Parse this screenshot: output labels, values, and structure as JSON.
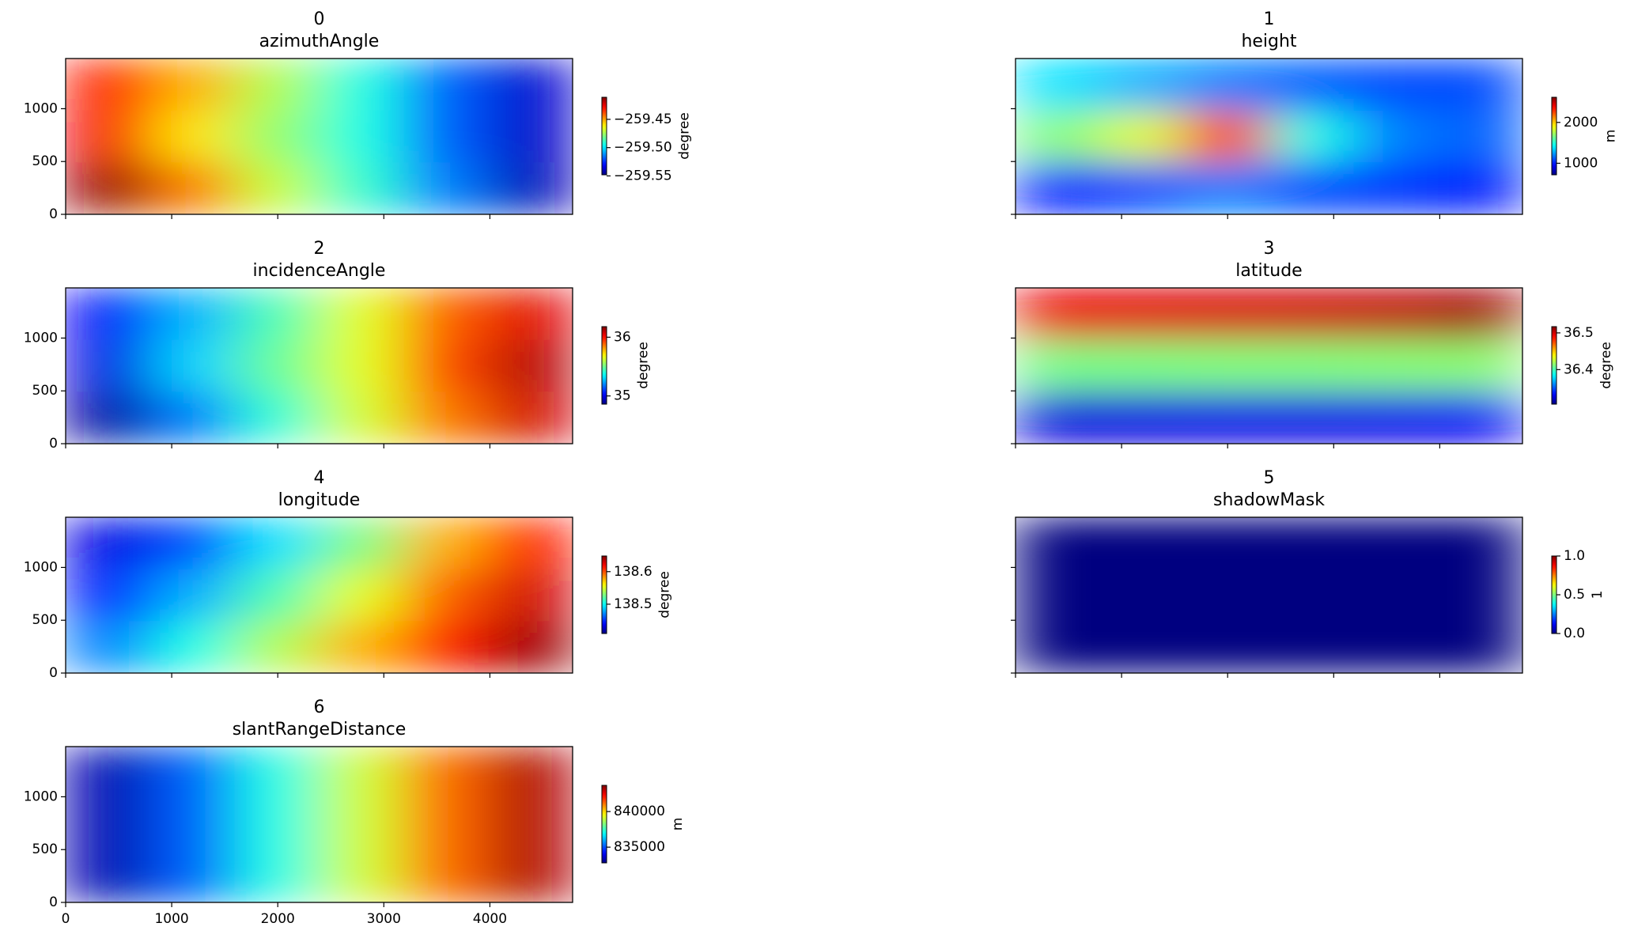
{
  "chart_data": [
    {
      "type": "heatmap",
      "title": "0",
      "subtitle": "azimuthAngle",
      "colormap": "jet",
      "colorbar_label": "degree",
      "clim": [
        -259.548,
        -259.411
      ],
      "cticks": [
        {
          "value": -259.55,
          "label": "−259.55"
        },
        {
          "value": -259.5,
          "label": "−259.50"
        },
        {
          "value": -259.45,
          "label": "−259.45"
        }
      ],
      "xlim": [
        0,
        4780
      ],
      "ylim": [
        0,
        1475
      ],
      "xticks": [
        0,
        1000,
        2000,
        3000,
        4000
      ],
      "yticks": [
        0,
        500,
        1000
      ],
      "xtick_labels": false,
      "ytick_labels": true,
      "values": [
        [
          -259.432,
          -259.452,
          -259.473,
          -259.493,
          -259.518,
          -259.537
        ],
        [
          -259.427,
          -259.459,
          -259.477,
          -259.493,
          -259.518,
          -259.538
        ],
        [
          -259.415,
          -259.445,
          -259.47,
          -259.49,
          -259.514,
          -259.54
        ]
      ]
    },
    {
      "type": "heatmap",
      "title": "1",
      "subtitle": "height",
      "colormap": "jet",
      "colorbar_label": "m",
      "clim": [
        718,
        2615
      ],
      "cticks": [
        1000,
        2000
      ],
      "xlim": [
        0,
        4780
      ],
      "ylim": [
        0,
        1475
      ],
      "xticks": [
        0,
        1000,
        2000,
        3000,
        4000
      ],
      "yticks": [
        0,
        500,
        1000
      ],
      "xtick_labels": false,
      "ytick_labels": false,
      "values": [
        [
          1382,
          1287,
          1192,
          1135,
          1097,
          1097
        ],
        [
          1667,
          1856,
          2330,
          1477,
          1192,
          1135
        ],
        [
          1003,
          1097,
          1192,
          1097,
          1059,
          1003
        ]
      ]
    },
    {
      "type": "heatmap",
      "title": "2",
      "subtitle": "incidenceAngle",
      "colormap": "jet",
      "colorbar_label": "degree",
      "clim": [
        34.86,
        36.18
      ],
      "cticks": [
        35,
        36
      ],
      "xlim": [
        0,
        4780
      ],
      "ylim": [
        0,
        1475
      ],
      "xticks": [
        0,
        1000,
        2000,
        3000,
        4000
      ],
      "yticks": [
        0,
        500,
        1000
      ],
      "xtick_labels": false,
      "ytick_labels": true,
      "values": [
        [
          35.02,
          35.26,
          35.45,
          35.65,
          35.89,
          36.05
        ],
        [
          34.99,
          35.3,
          35.49,
          35.65,
          35.92,
          36.11
        ],
        [
          34.91,
          35.19,
          35.41,
          35.63,
          35.86,
          36.07
        ]
      ]
    },
    {
      "type": "heatmap",
      "title": "3",
      "subtitle": "latitude",
      "colormap": "jet",
      "colorbar_label": "degree",
      "clim": [
        36.306,
        36.517
      ],
      "cticks": [
        36.4,
        36.5
      ],
      "xlim": [
        0,
        4780
      ],
      "ylim": [
        0,
        1475
      ],
      "xticks": [
        0,
        1000,
        2000,
        3000,
        4000
      ],
      "yticks": [
        0,
        500,
        1000
      ],
      "xtick_labels": false,
      "ytick_labels": false,
      "values": [
        [
          36.495,
          36.497,
          36.499,
          36.501,
          36.504,
          36.51
        ],
        [
          36.41,
          36.411,
          36.412,
          36.412,
          36.413,
          36.414
        ],
        [
          36.325,
          36.326,
          36.327,
          36.327,
          36.328,
          36.33
        ]
      ]
    },
    {
      "type": "heatmap",
      "title": "4",
      "subtitle": "longitude",
      "colormap": "jet",
      "colorbar_label": "degree",
      "clim": [
        138.41,
        138.648
      ],
      "cticks": [
        138.5,
        138.6
      ],
      "xlim": [
        0,
        4780
      ],
      "ylim": [
        0,
        1475
      ],
      "xticks": [
        0,
        1000,
        2000,
        3000,
        4000
      ],
      "yticks": [
        0,
        500,
        1000
      ],
      "xtick_labels": false,
      "ytick_labels": true,
      "values": [
        [
          138.434,
          138.458,
          138.493,
          138.529,
          138.577,
          138.612
        ],
        [
          138.446,
          138.481,
          138.517,
          138.553,
          138.596,
          138.629
        ],
        [
          138.47,
          138.505,
          138.541,
          138.577,
          138.612,
          138.641
        ]
      ]
    },
    {
      "type": "heatmap",
      "title": "5",
      "subtitle": "shadowMask",
      "colormap": "jet",
      "colorbar_label": "1",
      "clim": [
        0,
        1
      ],
      "cticks": [
        {
          "value": 0,
          "label": "0.0"
        },
        {
          "value": 0.5,
          "label": "0.5"
        },
        {
          "value": 1,
          "label": "1.0"
        }
      ],
      "xlim": [
        0,
        4780
      ],
      "ylim": [
        0,
        1475
      ],
      "xticks": [
        0,
        1000,
        2000,
        3000,
        4000
      ],
      "yticks": [
        0,
        500,
        1000
      ],
      "xtick_labels": false,
      "ytick_labels": false,
      "values": [
        [
          0,
          0,
          0,
          0,
          0,
          0
        ],
        [
          0,
          0,
          0,
          0,
          0,
          0
        ],
        [
          0,
          0,
          0,
          0,
          0,
          0
        ]
      ]
    },
    {
      "type": "heatmap",
      "title": "6",
      "subtitle": "slantRangeDistance",
      "colormap": "jet",
      "colorbar_label": "m",
      "clim": [
        832794,
        843676
      ],
      "cticks": [
        835000,
        840000
      ],
      "xlim": [
        0,
        4780
      ],
      "ylim": [
        0,
        1475
      ],
      "xticks": [
        0,
        1000,
        2000,
        3000,
        4000
      ],
      "yticks": [
        0,
        500,
        1000
      ],
      "xtick_labels": true,
      "ytick_labels": true,
      "values": [
        [
          833338,
          835188,
          837147,
          839106,
          841173,
          843132
        ],
        [
          833338,
          835188,
          837147,
          839106,
          841173,
          843132
        ],
        [
          833338,
          835188,
          837147,
          839106,
          841173,
          843132
        ]
      ]
    }
  ]
}
